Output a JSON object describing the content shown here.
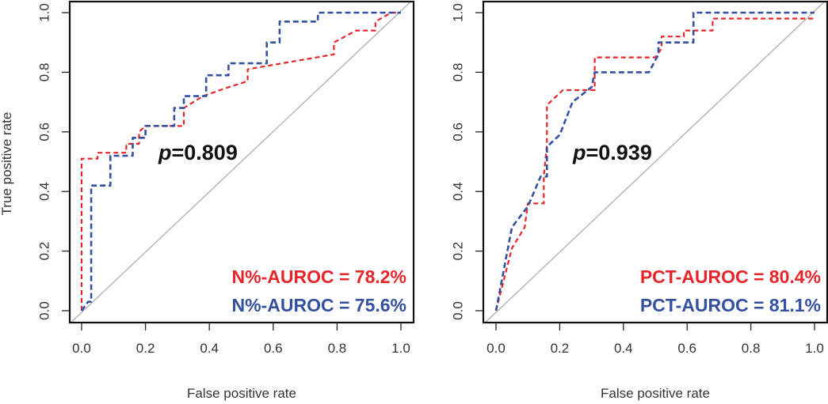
{
  "chart_data": [
    {
      "type": "line",
      "subtype": "roc",
      "title": "",
      "xlabel": "False positive rate",
      "ylabel": "True positive rate",
      "xlim": [
        0,
        1
      ],
      "ylim": [
        0,
        1
      ],
      "x_ticks": [
        "0.0",
        "0.2",
        "0.4",
        "0.6",
        "0.8",
        "1.0"
      ],
      "y_ticks": [
        "0.0",
        "0.2",
        "0.4",
        "0.6",
        "0.8",
        "1.0"
      ],
      "annotation": {
        "italic": "p",
        "text": "=0.809"
      },
      "diagonal": {
        "x": [
          0,
          1
        ],
        "y": [
          0,
          1
        ],
        "color": "#bbbbbb"
      },
      "series": [
        {
          "name": "N%-AUROC = 78.2%",
          "color": "#e8242b",
          "x": [
            0,
            0,
            0,
            0.05,
            0.05,
            0.14,
            0.14,
            0.18,
            0.18,
            0.2,
            0.24,
            0.32,
            0.32,
            0.38,
            0.46,
            0.52,
            0.52,
            0.79,
            0.79,
            0.86,
            0.92,
            0.92,
            0.97,
            1.0
          ],
          "y": [
            0,
            0.03,
            0.51,
            0.51,
            0.53,
            0.53,
            0.56,
            0.56,
            0.6,
            0.62,
            0.62,
            0.62,
            0.68,
            0.72,
            0.75,
            0.77,
            0.81,
            0.86,
            0.9,
            0.94,
            0.94,
            0.97,
            1.0,
            1.0
          ]
        },
        {
          "name": "N%-AUROC = 75.6%",
          "color": "#3450a1",
          "x": [
            0,
            0.02,
            0.03,
            0.03,
            0.09,
            0.09,
            0.16,
            0.16,
            0.2,
            0.2,
            0.29,
            0.29,
            0.32,
            0.32,
            0.39,
            0.39,
            0.46,
            0.46,
            0.58,
            0.58,
            0.62,
            0.62,
            0.74,
            0.74,
            1.0
          ],
          "y": [
            0,
            0.03,
            0.03,
            0.42,
            0.42,
            0.52,
            0.52,
            0.58,
            0.58,
            0.62,
            0.62,
            0.68,
            0.68,
            0.72,
            0.72,
            0.79,
            0.79,
            0.83,
            0.83,
            0.9,
            0.9,
            0.97,
            0.97,
            1.0,
            1.0
          ]
        }
      ]
    },
    {
      "type": "line",
      "subtype": "roc",
      "title": "",
      "xlabel": "False positive rate",
      "ylabel": "",
      "xlim": [
        0,
        1
      ],
      "ylim": [
        0,
        1
      ],
      "x_ticks": [
        "0.0",
        "0.2",
        "0.4",
        "0.6",
        "0.8",
        "1.0"
      ],
      "y_ticks": [
        "0.0",
        "0.2",
        "0.4",
        "0.6",
        "0.8",
        "1.0"
      ],
      "annotation": {
        "italic": "p",
        "text": "=0.939"
      },
      "diagonal": {
        "x": [
          0,
          1
        ],
        "y": [
          0,
          1
        ],
        "color": "#bbbbbb"
      },
      "series": [
        {
          "name": "PCT-AUROC = 80.4%",
          "color": "#e8242b",
          "x": [
            0,
            0.05,
            0.09,
            0.1,
            0.1,
            0.15,
            0.15,
            0.16,
            0.16,
            0.21,
            0.31,
            0.31,
            0.5,
            0.52,
            0.52,
            0.59,
            0.59,
            0.68,
            0.68,
            1.0
          ],
          "y": [
            0,
            0.21,
            0.28,
            0.36,
            0.36,
            0.36,
            0.45,
            0.56,
            0.69,
            0.74,
            0.74,
            0.85,
            0.85,
            0.88,
            0.92,
            0.92,
            0.94,
            0.94,
            0.98,
            0.98
          ],
          "smooth": true
        },
        {
          "name": "PCT-AUROC = 81.1%",
          "color": "#3450a1",
          "x": [
            0,
            0.05,
            0.1,
            0.14,
            0.16,
            0.16,
            0.2,
            0.24,
            0.3,
            0.31,
            0.48,
            0.51,
            0.51,
            0.62,
            0.62,
            1.0
          ],
          "y": [
            0,
            0.28,
            0.35,
            0.45,
            0.45,
            0.55,
            0.59,
            0.7,
            0.75,
            0.8,
            0.8,
            0.86,
            0.9,
            0.9,
            1.0,
            1.0
          ],
          "smooth": true
        }
      ]
    }
  ]
}
